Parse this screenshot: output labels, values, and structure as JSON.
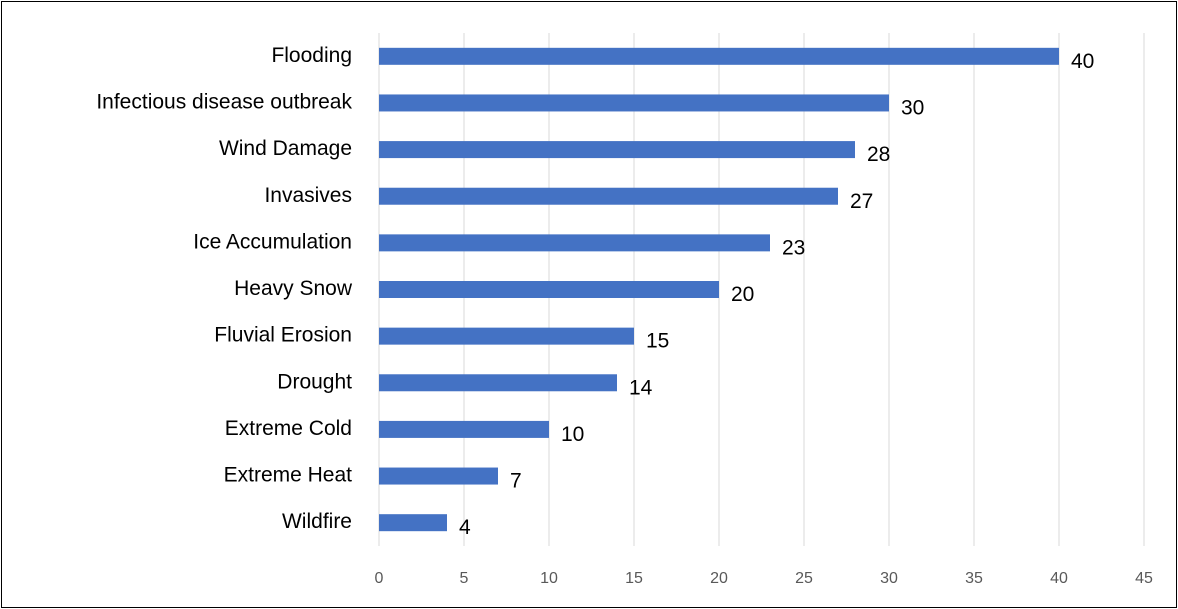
{
  "chart_data": {
    "type": "bar",
    "orientation": "horizontal",
    "categories": [
      "Flooding",
      "Infectious disease outbreak",
      "Wind Damage",
      "Invasives",
      "Ice Accumulation",
      "Heavy Snow",
      "Fluvial Erosion",
      "Drought",
      "Extreme Cold",
      "Extreme Heat",
      "Wildfire"
    ],
    "values": [
      40,
      30,
      28,
      27,
      23,
      20,
      15,
      14,
      10,
      7,
      4
    ],
    "color": "#4472c4",
    "xlim": [
      0,
      45
    ],
    "xticks": [
      0,
      5,
      10,
      15,
      20,
      25,
      30,
      35,
      40,
      45
    ],
    "grid": true
  }
}
